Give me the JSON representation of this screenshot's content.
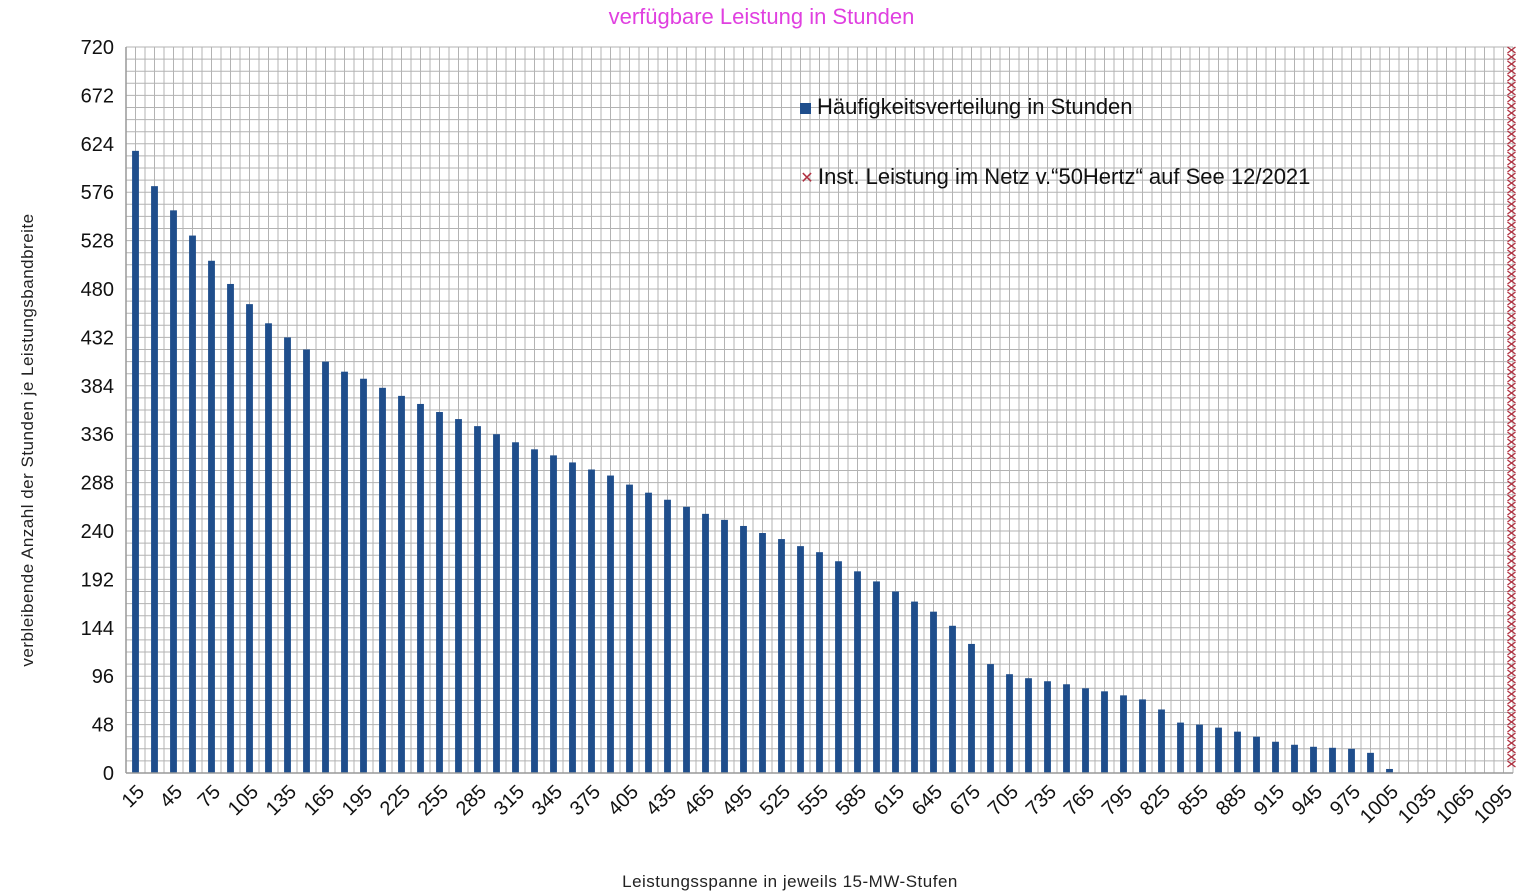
{
  "chart_data": {
    "type": "bar",
    "title": "verfügbare Leistung in Stunden",
    "xlabel": "Leistungsspanne in jeweils 15-MW-Stufen",
    "ylabel": "verbleibende Anzahl der Stunden je Leistungsbandbreite",
    "ylim": [
      0,
      720
    ],
    "yticks": [
      0,
      48,
      96,
      144,
      192,
      240,
      288,
      336,
      384,
      432,
      480,
      528,
      576,
      624,
      672,
      720
    ],
    "grid": true,
    "legend_position": "top-right",
    "x_tick_labels": [
      "15",
      "45",
      "75",
      "105",
      "135",
      "165",
      "195",
      "225",
      "255",
      "285",
      "315",
      "345",
      "375",
      "405",
      "435",
      "465",
      "495",
      "525",
      "555",
      "585",
      "615",
      "645",
      "675",
      "705",
      "735",
      "765",
      "795",
      "825",
      "855",
      "885",
      "915",
      "945",
      "975",
      "1005",
      "1035",
      "1065",
      "1095"
    ],
    "categories": [
      15,
      30,
      45,
      60,
      75,
      90,
      105,
      120,
      135,
      150,
      165,
      180,
      195,
      210,
      225,
      240,
      255,
      270,
      285,
      300,
      315,
      330,
      345,
      360,
      375,
      390,
      405,
      420,
      435,
      450,
      465,
      480,
      495,
      510,
      525,
      540,
      555,
      570,
      585,
      600,
      615,
      630,
      645,
      660,
      675,
      690,
      705,
      720,
      735,
      750,
      765,
      780,
      795,
      810,
      825,
      840,
      855,
      870,
      885,
      900,
      915,
      930,
      945,
      960,
      975,
      990,
      1005,
      1020,
      1035,
      1050,
      1065,
      1080,
      1095
    ],
    "series": [
      {
        "name": "Häufigkeitsverteilung in Stunden",
        "color": "#1f4e8c",
        "values": [
          617,
          582,
          558,
          533,
          508,
          485,
          465,
          446,
          432,
          420,
          408,
          398,
          391,
          382,
          374,
          366,
          358,
          351,
          344,
          336,
          328,
          321,
          315,
          308,
          301,
          295,
          286,
          278,
          271,
          264,
          257,
          251,
          245,
          238,
          232,
          225,
          219,
          210,
          200,
          190,
          180,
          170,
          160,
          146,
          128,
          108,
          98,
          94,
          91,
          88,
          84,
          81,
          77,
          73,
          63,
          50,
          48,
          45,
          41,
          36,
          31,
          28,
          26,
          25,
          24,
          20,
          4,
          0,
          0,
          0,
          0,
          0,
          0
        ]
      },
      {
        "name": "Inst. Leistung im Netz v.“50Hertz“ auf See 12/2021",
        "color": "#b03040",
        "x": 1095,
        "marker": "x-icon"
      }
    ]
  }
}
